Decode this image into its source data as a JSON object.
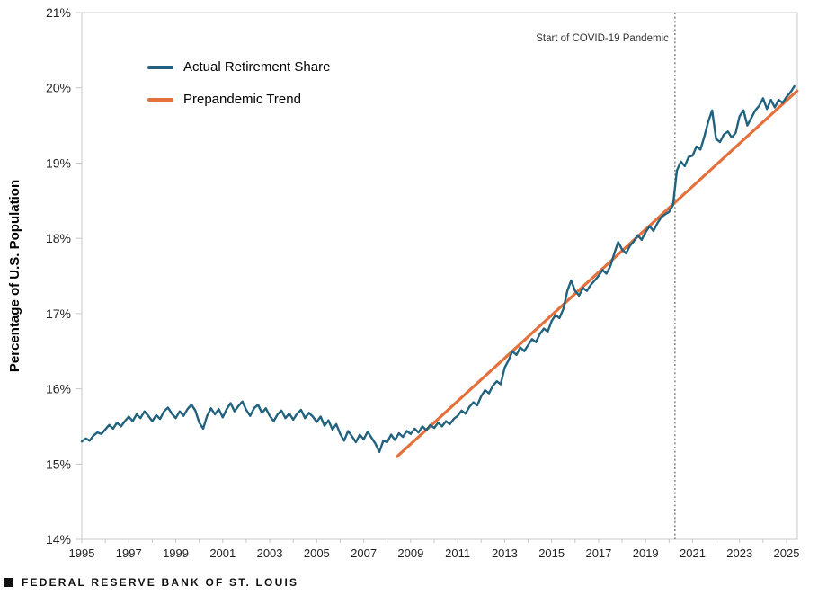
{
  "chart_data": {
    "type": "line",
    "title": "",
    "xlabel": "",
    "ylabel": "Percentage of U.S. Population",
    "ylim": [
      14,
      21
    ],
    "xlim": [
      1995,
      2025.45
    ],
    "grid": false,
    "y_ticks": [
      21,
      20,
      19,
      18,
      17,
      16,
      15,
      14
    ],
    "y_tick_suffix": "%",
    "x_tick_labels": [
      1995,
      1997,
      1999,
      2001,
      2003,
      2005,
      2007,
      2009,
      2011,
      2013,
      2015,
      2017,
      2019,
      2021,
      2023,
      2025
    ],
    "x_minor_ticks_every_year": [
      1995,
      2025
    ],
    "legend_position": "upper-left-inside",
    "legend": [
      {
        "label": "Actual Retirement Share",
        "color": "#21627f"
      },
      {
        "label": "Prepandemic Trend",
        "color": "#e4713b"
      }
    ],
    "annotation": {
      "text": "Start of COVID-19 Pandemic",
      "x": 2020.25,
      "line_style": "dotted",
      "line_color": "#7d7d7d"
    },
    "series": [
      {
        "name": "Actual Retirement Share",
        "color": "#21627f",
        "x_start": 1995.0,
        "x_step_years": 0.1666667,
        "values": [
          15.3,
          15.34,
          15.31,
          15.38,
          15.42,
          15.4,
          15.46,
          15.52,
          15.47,
          15.55,
          15.5,
          15.57,
          15.63,
          15.57,
          15.66,
          15.61,
          15.7,
          15.64,
          15.57,
          15.65,
          15.6,
          15.7,
          15.75,
          15.67,
          15.61,
          15.7,
          15.64,
          15.73,
          15.79,
          15.71,
          15.55,
          15.47,
          15.64,
          15.74,
          15.66,
          15.73,
          15.62,
          15.73,
          15.81,
          15.7,
          15.77,
          15.83,
          15.72,
          15.64,
          15.74,
          15.79,
          15.68,
          15.74,
          15.64,
          15.57,
          15.66,
          15.71,
          15.61,
          15.67,
          15.59,
          15.67,
          15.72,
          15.61,
          15.68,
          15.63,
          15.56,
          15.63,
          15.51,
          15.58,
          15.46,
          15.53,
          15.4,
          15.31,
          15.44,
          15.37,
          15.29,
          15.39,
          15.33,
          15.43,
          15.35,
          15.27,
          15.16,
          15.31,
          15.29,
          15.39,
          15.32,
          15.41,
          15.36,
          15.44,
          15.4,
          15.47,
          15.42,
          15.5,
          15.45,
          15.52,
          15.48,
          15.55,
          15.5,
          15.57,
          15.53,
          15.6,
          15.64,
          15.71,
          15.67,
          15.76,
          15.82,
          15.78,
          15.9,
          15.98,
          15.94,
          16.04,
          16.1,
          16.06,
          16.28,
          16.38,
          16.5,
          16.45,
          16.55,
          16.5,
          16.58,
          16.66,
          16.62,
          16.73,
          16.8,
          16.76,
          16.9,
          16.98,
          16.94,
          17.06,
          17.3,
          17.44,
          17.3,
          17.24,
          17.34,
          17.3,
          17.38,
          17.44,
          17.5,
          17.58,
          17.53,
          17.63,
          17.8,
          17.95,
          17.85,
          17.8,
          17.9,
          17.96,
          18.04,
          17.98,
          18.08,
          18.16,
          18.1,
          18.2,
          18.28,
          18.32,
          18.35,
          18.44,
          18.9,
          19.02,
          18.96,
          19.08,
          19.1,
          19.22,
          19.18,
          19.35,
          19.55,
          19.7,
          19.32,
          19.28,
          19.38,
          19.42,
          19.34,
          19.4,
          19.62,
          19.7,
          19.5,
          19.6,
          19.7,
          19.76,
          19.86,
          19.72,
          19.84,
          19.74,
          19.84,
          19.8,
          19.88,
          19.94,
          20.02
        ]
      },
      {
        "name": "Prepandemic Trend",
        "color": "#e4713b",
        "points": [
          {
            "x": 2008.42,
            "y": 15.1
          },
          {
            "x": 2025.45,
            "y": 19.96
          }
        ]
      }
    ]
  },
  "footer": {
    "bullet": "square-bullet",
    "brand": "FEDERAL RESERVE BANK OF ST. LOUIS"
  }
}
